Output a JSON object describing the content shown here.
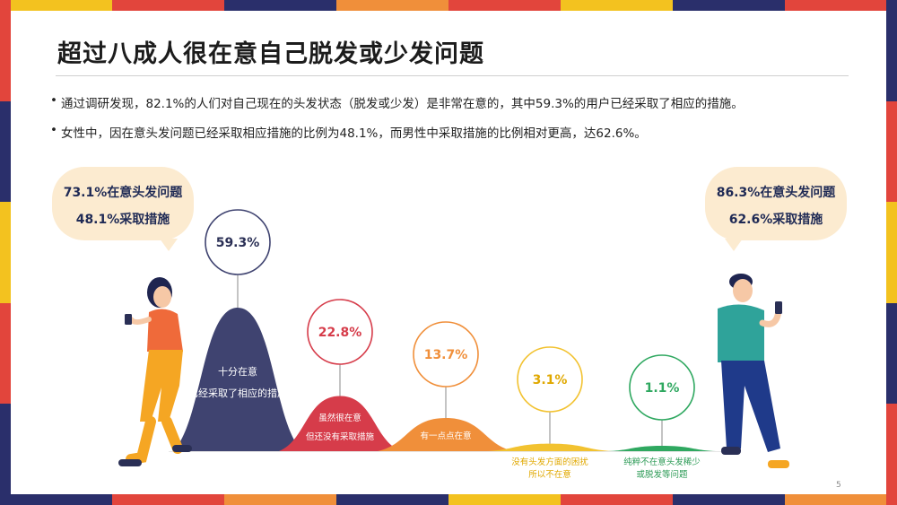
{
  "slide": {
    "title": "超过八成人很在意自己脱发或少发问题",
    "bullets": [
      "通过调研发现，82.1%的人们对自己现在的头发状态（脱发或少发）是非常在意的，其中59.3%的用户已经采取了相应的措施。",
      "女性中，因在意头发问题已经采取相应措施的比例为48.1%，而男性中采取措施的比例相对更高，达62.6%。"
    ],
    "female_bubble": {
      "line1": "73.1%在意头发问题",
      "line2": "48.1%采取措施"
    },
    "male_bubble": {
      "line1": "86.3%在意头发问题",
      "line2": "62.6%采取措施"
    },
    "page_number": "5"
  },
  "chart_data": {
    "type": "area",
    "categories": [
      {
        "label_lines": [
          "十分在意",
          "已经采取了相应的措施"
        ],
        "value": 59.3,
        "value_label": "59.3%",
        "color": "#3f4370",
        "label_color": "#ffffff",
        "ring_color": "#3f4370"
      },
      {
        "label_lines": [
          "虽然很在意",
          "但还没有采取措施"
        ],
        "value": 22.8,
        "value_label": "22.8%",
        "color": "#d63c4a",
        "label_color": "#ffffff",
        "ring_color": "#d63c4a"
      },
      {
        "label_lines": [
          "有一点点在意"
        ],
        "value": 13.7,
        "value_label": "13.7%",
        "color": "#f08f3a",
        "label_color": "#ffffff",
        "ring_color": "#f08f3a"
      },
      {
        "label_lines": [
          "没有头发方面的困扰",
          "所以不在意"
        ],
        "value": 3.1,
        "value_label": "3.1%",
        "color": "#f2c230",
        "label_color": "#e0a800",
        "ring_color": "#f2c230"
      },
      {
        "label_lines": [
          "纯粹不在意头发稀少",
          "或脱发等问题"
        ],
        "value": 1.1,
        "value_label": "1.1%",
        "color": "#2fa860",
        "label_color": "#2b9a55",
        "ring_color": "#2fa860"
      }
    ],
    "value_text_colors": [
      "#2a2f55",
      "#d63c4a",
      "#f08f3a",
      "#e0a800",
      "#2fa860"
    ]
  },
  "colors": {
    "edge_top": [
      "#f3c21f",
      "#e2453c",
      "#2a2f6b",
      "#f08f3a",
      "#e2453c",
      "#f3c21f",
      "#2a2f6b",
      "#e2453c"
    ],
    "edge_bottom": [
      "#2a2f6b",
      "#e2453c",
      "#f08f3a",
      "#2a2f6b",
      "#f3c21f",
      "#e2453c",
      "#2a2f6b",
      "#f08f3a"
    ],
    "edge_left": [
      "#e2453c",
      "#2a2f6b",
      "#f3c21f",
      "#e2453c",
      "#2a2f6b"
    ],
    "edge_right": [
      "#2a2f6b",
      "#e2453c",
      "#f3c21f",
      "#2a2f6b",
      "#e2453c"
    ]
  },
  "icons": [
    "woman-with-phone-illustration",
    "man-with-phone-illustration"
  ]
}
